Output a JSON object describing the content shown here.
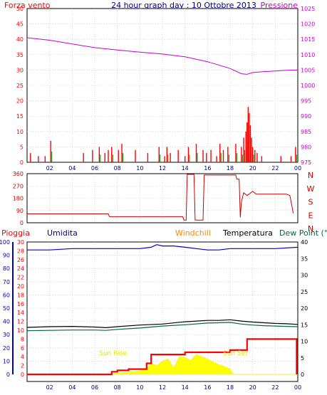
{
  "chart_data": [
    {
      "type": "line",
      "panel": "wind-pressure",
      "title": "24 hour graph day : 10 Ottobre 2013",
      "left_label": "Forza vento",
      "right_label": "Pressione",
      "left_axis": {
        "min": 0,
        "max": 50,
        "ticks": [
          "0",
          "5",
          "10",
          "15",
          "20",
          "25",
          "30",
          "35",
          "40",
          "45",
          "50"
        ]
      },
      "right_axis": {
        "min": 975,
        "max": 1025,
        "ticks": [
          "975",
          "980",
          "985",
          "990",
          "995",
          "1000",
          "1005",
          "1010",
          "1015",
          "1020",
          "1025"
        ]
      },
      "x_ticks": [
        "02",
        "04",
        "06",
        "08",
        "10",
        "12",
        "14",
        "16",
        "18",
        "20",
        "22",
        "00"
      ],
      "series": [
        {
          "label": "Pressione",
          "color": "#cc00cc",
          "x": [
            0,
            2,
            4,
            6,
            8,
            10,
            12,
            14,
            16,
            18,
            19,
            19.5,
            20,
            21,
            22,
            23,
            24
          ],
          "y": [
            1015.5,
            1014.7,
            1013.5,
            1012.3,
            1011.5,
            1010.8,
            1010.2,
            1009.3,
            1007.7,
            1005.5,
            1003.8,
            1003.6,
            1004.2,
            1004.5,
            1004.7,
            1004.9,
            1005.0
          ]
        },
        {
          "label": "Forza vento",
          "color": "#ff0000",
          "kind": "spikes",
          "x": [
            0.3,
            1.0,
            1.6,
            2.1,
            5.0,
            5.8,
            6.4,
            6.9,
            7.2,
            7.5,
            8.1,
            8.4,
            9.6,
            10.7,
            11.7,
            12.2,
            12.4,
            12.7,
            13.4,
            14.0,
            14.3,
            15.0,
            15.6,
            15.9,
            16.3,
            16.8,
            17.1,
            17.4,
            17.8,
            18.5,
            19.0,
            19.2,
            19.4,
            19.5,
            19.6,
            19.7,
            19.8,
            19.9,
            20.0,
            20.2,
            20.4,
            20.8,
            22.5,
            23.4,
            23.8
          ],
          "y": [
            3,
            2,
            2,
            7,
            3,
            4,
            5,
            3,
            4,
            5,
            4,
            6,
            4,
            3,
            5,
            2,
            5,
            3,
            4,
            2,
            5,
            6,
            4,
            3,
            4,
            2,
            6,
            4,
            5,
            6,
            5,
            8,
            10,
            13,
            18,
            16,
            12,
            8,
            5,
            4,
            3,
            2,
            2,
            2,
            5
          ]
        }
      ]
    },
    {
      "type": "line",
      "panel": "wind-direction",
      "left_axis": {
        "min": 0,
        "max": 360,
        "ticks": [
          "0",
          "90",
          "180",
          "270",
          "360"
        ]
      },
      "right_axis_labels": [
        "N",
        "W",
        "S",
        "E",
        "N"
      ],
      "series": [
        {
          "label": "direction",
          "color": "#cc0000",
          "x": [
            0,
            7.2,
            7.3,
            13.8,
            13.9,
            14.1,
            14.2,
            14.8,
            14.9,
            15.6,
            15.7,
            18.5,
            18.6,
            18.8,
            18.9,
            19.0,
            19.2,
            19.5,
            20.0,
            20.3,
            21.0,
            22.0,
            23.0,
            23.3,
            23.6
          ],
          "y": [
            65,
            65,
            45,
            45,
            20,
            20,
            355,
            355,
            20,
            20,
            350,
            350,
            320,
            320,
            40,
            150,
            220,
            200,
            230,
            210,
            210,
            210,
            210,
            200,
            70
          ]
        }
      ]
    },
    {
      "type": "line",
      "panel": "rain-humidity-temperature",
      "legend": [
        "Pioggia",
        "Umidita",
        "Windchill",
        "Temperatura",
        "Dew Point (°C"
      ],
      "far_left_axis": {
        "min": 0,
        "max": 100,
        "ticks": [
          "0",
          "10",
          "20",
          "30",
          "40",
          "50",
          "60",
          "70",
          "80",
          "90",
          "100"
        ]
      },
      "left_axis": {
        "min": 0,
        "max": 30,
        "ticks": [
          "0",
          "2",
          "4",
          "6",
          "8",
          "10",
          "12",
          "14",
          "16",
          "18",
          "20",
          "22",
          "24",
          "26",
          "28",
          "30"
        ]
      },
      "right_axis": {
        "min": 0,
        "max": 40,
        "ticks": [
          "0",
          "5",
          "10",
          "15",
          "20",
          "25",
          "30",
          "35",
          "40"
        ]
      },
      "x_ticks": [
        "02",
        "04",
        "06",
        "08",
        "10",
        "12",
        "14",
        "16",
        "18",
        "20",
        "22",
        "00"
      ],
      "annotations": [
        "Sun Rise",
        "Sun Set"
      ],
      "series": [
        {
          "label": "Umidita",
          "color": "#0000cc",
          "x": [
            0,
            2,
            4,
            6,
            8,
            10,
            11,
            11.5,
            12,
            13,
            14,
            15,
            16,
            17,
            18,
            20,
            22,
            24
          ],
          "y": [
            94,
            94,
            95,
            95,
            95,
            95,
            96,
            98,
            97,
            97,
            96,
            95,
            94,
            94,
            95,
            95,
            95,
            96
          ]
        },
        {
          "label": "Temperatura",
          "color": "#000000",
          "x": [
            0,
            2,
            4,
            6,
            7,
            8,
            10,
            12,
            14,
            16,
            17,
            18,
            19,
            20,
            21,
            22,
            23,
            24
          ],
          "y": [
            14.2,
            14.4,
            14.5,
            14.3,
            14.1,
            14.4,
            14.9,
            15.2,
            15.9,
            16.3,
            16.3,
            16.5,
            16.1,
            15.8,
            15.6,
            15.4,
            15.3,
            15.1
          ]
        },
        {
          "label": "Dew Point (°C",
          "color": "#006644",
          "x": [
            0,
            2,
            4,
            6,
            7,
            8,
            10,
            12,
            14,
            16,
            17,
            18,
            19,
            20,
            21,
            22,
            23,
            24
          ],
          "y": [
            13.2,
            13.3,
            13.4,
            13.4,
            13.3,
            13.6,
            14.0,
            14.6,
            15.0,
            15.5,
            15.6,
            15.7,
            15.2,
            14.9,
            14.7,
            14.6,
            14.5,
            14.4
          ]
        },
        {
          "label": "Pioggia",
          "color": "#ff0000",
          "x": [
            0,
            7.0,
            7.5,
            8.0,
            9.0,
            10.0,
            10.6,
            11.0,
            13.2,
            14.0,
            17.6,
            18.0,
            19.0,
            19.5,
            23.8,
            23.9
          ],
          "y": [
            0,
            0,
            0.6,
            0.9,
            1.2,
            1.2,
            2.5,
            4.5,
            4.5,
            5.0,
            5.0,
            5.5,
            5.5,
            8.0,
            8.0,
            0
          ]
        },
        {
          "label": "solar",
          "color": "#ffff00",
          "x": [
            0,
            7.3,
            8,
            9,
            10,
            10.5,
            11,
            11.5,
            12,
            12.5,
            13,
            13.5,
            14,
            14.5,
            15,
            15.5,
            16,
            16.5,
            17,
            17.5,
            18,
            18.3,
            24
          ],
          "y": [
            0,
            0,
            0.3,
            0.5,
            0.8,
            1,
            2.5,
            2,
            3,
            3.5,
            1.5,
            4,
            3.8,
            3.2,
            4.5,
            4,
            3.5,
            2.8,
            2.2,
            1.8,
            1.2,
            0,
            0
          ]
        }
      ]
    }
  ]
}
